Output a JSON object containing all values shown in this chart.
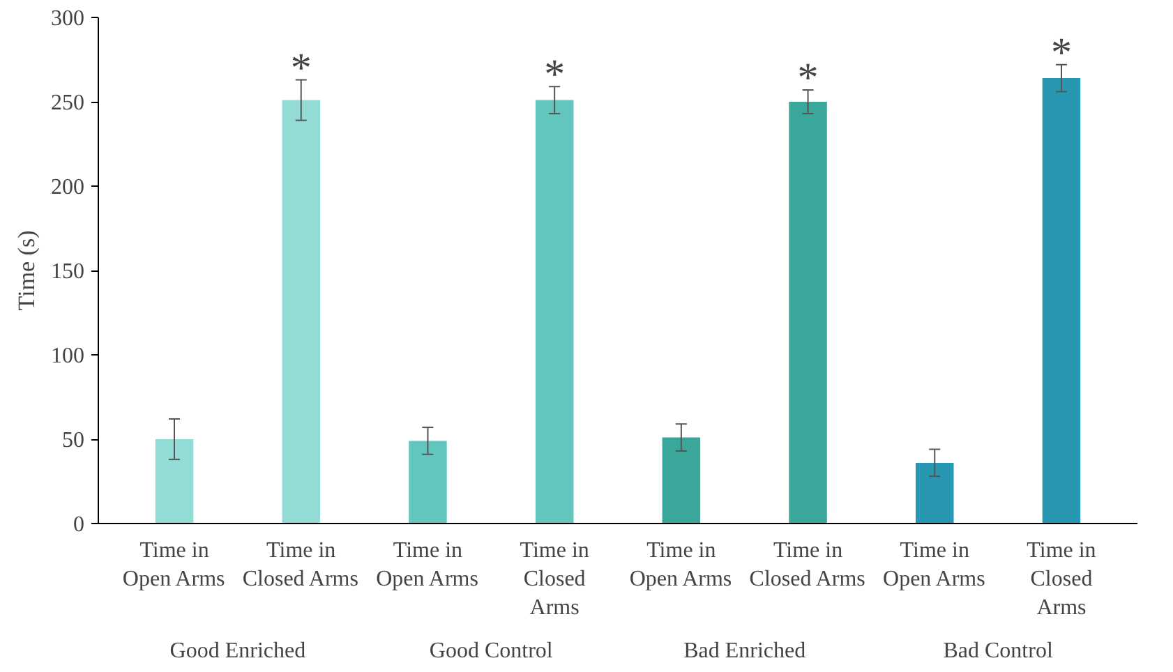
{
  "chart_data": {
    "type": "bar",
    "ylabel": "Time (s)",
    "categories": [
      "Time in Open Arms",
      "Time in Closed Arms",
      "Time in Open Arms",
      "Time in Closed Arms",
      "Time in Open Arms",
      "Time in Closed Arms",
      "Time in Open Arms",
      "Time in Closed Arms"
    ],
    "values": [
      50,
      251,
      49,
      251,
      51,
      250,
      36,
      264
    ],
    "errors": [
      12,
      12,
      8,
      8,
      8,
      7,
      8,
      8
    ],
    "colors": [
      "#93dcd6",
      "#93dcd6",
      "#62c6bf",
      "#62c6bf",
      "#3aa79a",
      "#3aa79a",
      "#2897b1",
      "#2897b1"
    ],
    "value_labels": [
      null,
      "*",
      null,
      "*",
      null,
      "*",
      null,
      "*"
    ],
    "annotations": [
      "Good Enriched",
      "Good Control",
      "Bad Enriched",
      "Bad Control"
    ],
    "ylim": [
      0,
      300
    ],
    "yticks": [
      0,
      50,
      100,
      150,
      200,
      250,
      300
    ],
    "grid": false
  }
}
